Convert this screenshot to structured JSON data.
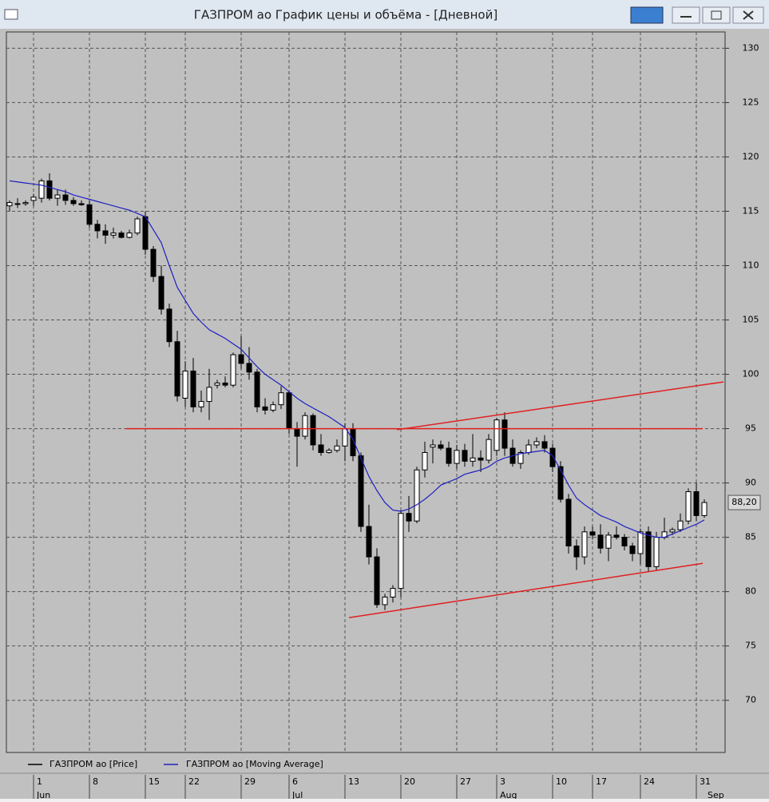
{
  "window_title": "ГАЗПРОМ ао График цены и объёма - [Дневной]",
  "chart_data": {
    "type": "candlestick",
    "categories": [
      null,
      null,
      null,
      "1",
      null,
      null,
      null,
      null,
      null,
      null,
      "8",
      null,
      null,
      null,
      null,
      null,
      null,
      "15",
      null,
      null,
      null,
      null,
      "22",
      null,
      null,
      null,
      null,
      null,
      null,
      "29",
      null,
      null,
      null,
      null,
      null,
      "6",
      null,
      null,
      null,
      null,
      null,
      null,
      "13",
      null,
      null,
      null,
      null,
      null,
      null,
      "20",
      null,
      null,
      null,
      null,
      null,
      null,
      "27",
      null,
      null,
      null,
      null,
      "3",
      null,
      null,
      null,
      null,
      null,
      null,
      "10",
      null,
      null,
      null,
      null,
      "17",
      null,
      null,
      null,
      null,
      null,
      "24",
      null,
      null,
      null,
      null,
      null,
      null,
      "31",
      null
    ],
    "months": [
      {
        "label": "Jun",
        "at": 3
      },
      {
        "label": "Jul",
        "at": 35
      },
      {
        "label": "Aug",
        "at": 61
      },
      {
        "label": "Sep",
        "at": 87
      }
    ],
    "series": [
      {
        "name": "ГАЗПРОМ ао [Price]",
        "color": "#000000",
        "open": [
          115.5,
          115.7,
          115.7,
          116,
          116.2,
          117.8,
          116.2,
          116.5,
          116,
          115.7,
          115.6,
          113.8,
          113.2,
          112.8,
          113,
          112.6,
          113,
          114.5,
          111.5,
          109,
          106,
          103,
          97.8,
          100.3,
          97,
          97.5,
          99,
          99.2,
          99,
          101.8,
          101,
          100.2,
          97,
          96.7,
          97.2,
          98.3,
          95,
          94.3,
          96.2,
          93.5,
          92.8,
          93,
          93.4,
          95,
          92.5,
          86,
          83.2,
          78.8,
          79.5,
          80.3,
          87.2,
          86.5,
          91.2,
          93.3,
          93.5,
          93.2,
          91.8,
          93,
          92,
          92.3,
          92.1,
          93,
          95.8,
          93.2,
          91.8,
          92.8,
          93.5,
          93.8,
          93.2,
          91.5,
          88.5,
          84.2,
          83.2,
          85.5,
          85.2,
          84,
          85.2,
          85,
          84.2,
          83.5,
          85.5,
          82.3,
          85,
          85.5,
          85.7,
          86.5,
          89.2,
          87
        ],
        "high": [
          116,
          116.2,
          116,
          116.6,
          118,
          118.5,
          117,
          117,
          116.3,
          116,
          116,
          114.2,
          113.8,
          113.5,
          113.2,
          113.3,
          114.5,
          115,
          111.8,
          110,
          106.5,
          104,
          101.2,
          101.5,
          98.5,
          100.5,
          99.5,
          99.8,
          102,
          103.5,
          102.5,
          100.5,
          97.8,
          97.5,
          98.9,
          98.5,
          95.6,
          96.5,
          96.4,
          94.5,
          93.2,
          94,
          95.5,
          95.5,
          92.8,
          88,
          84,
          79.8,
          80.6,
          87.5,
          88.8,
          91.5,
          93.8,
          94,
          93.9,
          93.8,
          93.5,
          93.6,
          94.5,
          93,
          94.5,
          96,
          96.5,
          94,
          93,
          94,
          94.2,
          94.4,
          93.6,
          92,
          89,
          84.8,
          86,
          86,
          86.2,
          85.5,
          86,
          85.3,
          84.5,
          85.8,
          86,
          85.5,
          86.8,
          85.9,
          87.2,
          89.5,
          90,
          88.5
        ],
        "low": [
          115,
          115.3,
          115.5,
          115.5,
          115.8,
          116,
          115.5,
          115.6,
          115.5,
          115.5,
          113.5,
          112.5,
          112,
          112.5,
          112.5,
          112.5,
          112.8,
          111,
          108.5,
          105.5,
          102.5,
          97.5,
          97,
          96.5,
          96.5,
          95.8,
          98.7,
          98.8,
          98.8,
          100.5,
          99.5,
          96.5,
          96.3,
          96.5,
          96.8,
          94.5,
          91.5,
          94,
          93,
          92.5,
          92.7,
          92.8,
          92,
          92,
          85.5,
          82.5,
          78.5,
          78.3,
          79,
          79.5,
          85.5,
          86.3,
          90.5,
          91.8,
          93,
          91.5,
          91.3,
          91.5,
          91.5,
          91,
          91.8,
          92.5,
          92.5,
          91.5,
          91.3,
          92.6,
          93.2,
          92.8,
          91,
          88.2,
          83.5,
          82,
          82.5,
          84.8,
          83.5,
          82.8,
          84.8,
          83.8,
          82.8,
          82.5,
          81.8,
          82,
          84.8,
          85.2,
          85.5,
          86.2,
          86.5,
          86.8
        ],
        "close": [
          115.8,
          115.7,
          115.8,
          116.3,
          117.8,
          116.2,
          116.5,
          116,
          115.7,
          115.6,
          113.8,
          113.2,
          112.8,
          113,
          112.6,
          113,
          114.3,
          111.5,
          109,
          106,
          103,
          98,
          100.3,
          97,
          97.5,
          98.8,
          99.2,
          99,
          101.8,
          101,
          100.2,
          97,
          96.7,
          97.2,
          98.3,
          95,
          94.3,
          96.2,
          93.5,
          92.8,
          93,
          93.4,
          95,
          92.5,
          86,
          83.2,
          78.8,
          79.5,
          80.3,
          87.2,
          86.5,
          91.2,
          92.8,
          93.5,
          93.2,
          91.8,
          93,
          92,
          92.3,
          92.1,
          94,
          95.8,
          93.2,
          91.8,
          92.8,
          93.5,
          93.8,
          93.2,
          91.5,
          88.5,
          84.2,
          83.2,
          85.5,
          85.2,
          84,
          85.2,
          85,
          84.2,
          83.5,
          85.5,
          82.3,
          85,
          85.5,
          85.7,
          86.5,
          89.2,
          87,
          88.2
        ]
      },
      {
        "name": "ГАЗПРОМ ао [Moving Average]",
        "color": "#2020c0",
        "values": [
          117.8,
          117.7,
          117.6,
          117.5,
          117.4,
          117.2,
          117.0,
          116.8,
          116.5,
          116.3,
          116.1,
          115.9,
          115.7,
          115.5,
          115.3,
          115.1,
          114.8,
          114.5,
          113.3,
          112.1,
          110.0,
          108.0,
          106.8,
          105.6,
          104.8,
          104.1,
          103.7,
          103.3,
          102.8,
          102.3,
          101.5,
          100.7,
          100.0,
          99.5,
          99.0,
          98.4,
          97.8,
          97.3,
          96.9,
          96.5,
          96.1,
          95.6,
          95.1,
          94.0,
          92.3,
          90.6,
          89.3,
          88.2,
          87.5,
          87.4,
          87.6,
          88.0,
          88.5,
          89.1,
          89.8,
          90.1,
          90.4,
          90.8,
          91.0,
          91.2,
          91.5,
          92.0,
          92.3,
          92.5,
          92.7,
          92.8,
          92.9,
          93.0,
          92.5,
          91.2,
          89.8,
          88.6,
          88.0,
          87.5,
          87.0,
          86.7,
          86.4,
          86.0,
          85.7,
          85.4,
          85.2,
          85.0,
          85.0,
          85.3,
          85.6,
          85.9,
          86.2,
          86.6
        ]
      }
    ],
    "trend_lines": [
      {
        "color": "#e02020",
        "x": [
          14.6,
          86.8
        ],
        "y": [
          95,
          95
        ]
      },
      {
        "color": "#e02020",
        "x": [
          42.5,
          86.8
        ],
        "y": [
          77.6,
          82.6
        ]
      },
      {
        "color": "#e02020",
        "x": [
          48.5,
          89.4
        ],
        "y": [
          94.9,
          99.3
        ]
      }
    ],
    "last_value": {
      "value": 88.2,
      "label": "88,20"
    },
    "ylim": [
      65.2,
      131.5
    ],
    "yticks": [
      70,
      75,
      80,
      85,
      90,
      95,
      100,
      105,
      110,
      115,
      120,
      125,
      130
    ],
    "grid": true
  }
}
